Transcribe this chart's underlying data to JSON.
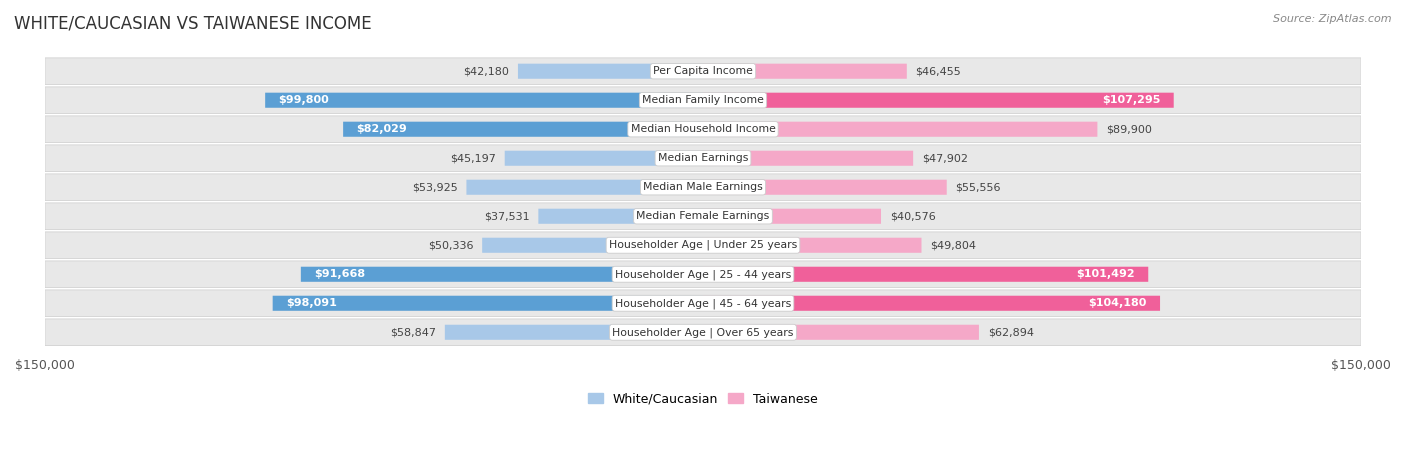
{
  "title": "WHITE/CAUCASIAN VS TAIWANESE INCOME",
  "source": "Source: ZipAtlas.com",
  "categories": [
    "Per Capita Income",
    "Median Family Income",
    "Median Household Income",
    "Median Earnings",
    "Median Male Earnings",
    "Median Female Earnings",
    "Householder Age | Under 25 years",
    "Householder Age | 25 - 44 years",
    "Householder Age | 45 - 64 years",
    "Householder Age | Over 65 years"
  ],
  "white_values": [
    42180,
    99800,
    82029,
    45197,
    53925,
    37531,
    50336,
    91668,
    98091,
    58847
  ],
  "taiwanese_values": [
    46455,
    107295,
    89900,
    47902,
    55556,
    40576,
    49804,
    101492,
    104180,
    62894
  ],
  "white_color_bar": "#a8c8e8",
  "taiwanese_color_bar": "#f5a8c8",
  "white_color_highlight": "#5b9fd4",
  "taiwanese_color_highlight": "#f0609a",
  "white_inside_threshold": 80000,
  "taiwanese_inside_threshold": 95000,
  "max_value": 150000,
  "legend_white": "White/Caucasian",
  "legend_taiwanese": "Taiwanese",
  "bg_color": "#ffffff",
  "row_bg_color": "#e8e8e8",
  "label_color_dark": "#444444",
  "label_color_white": "#ffffff"
}
